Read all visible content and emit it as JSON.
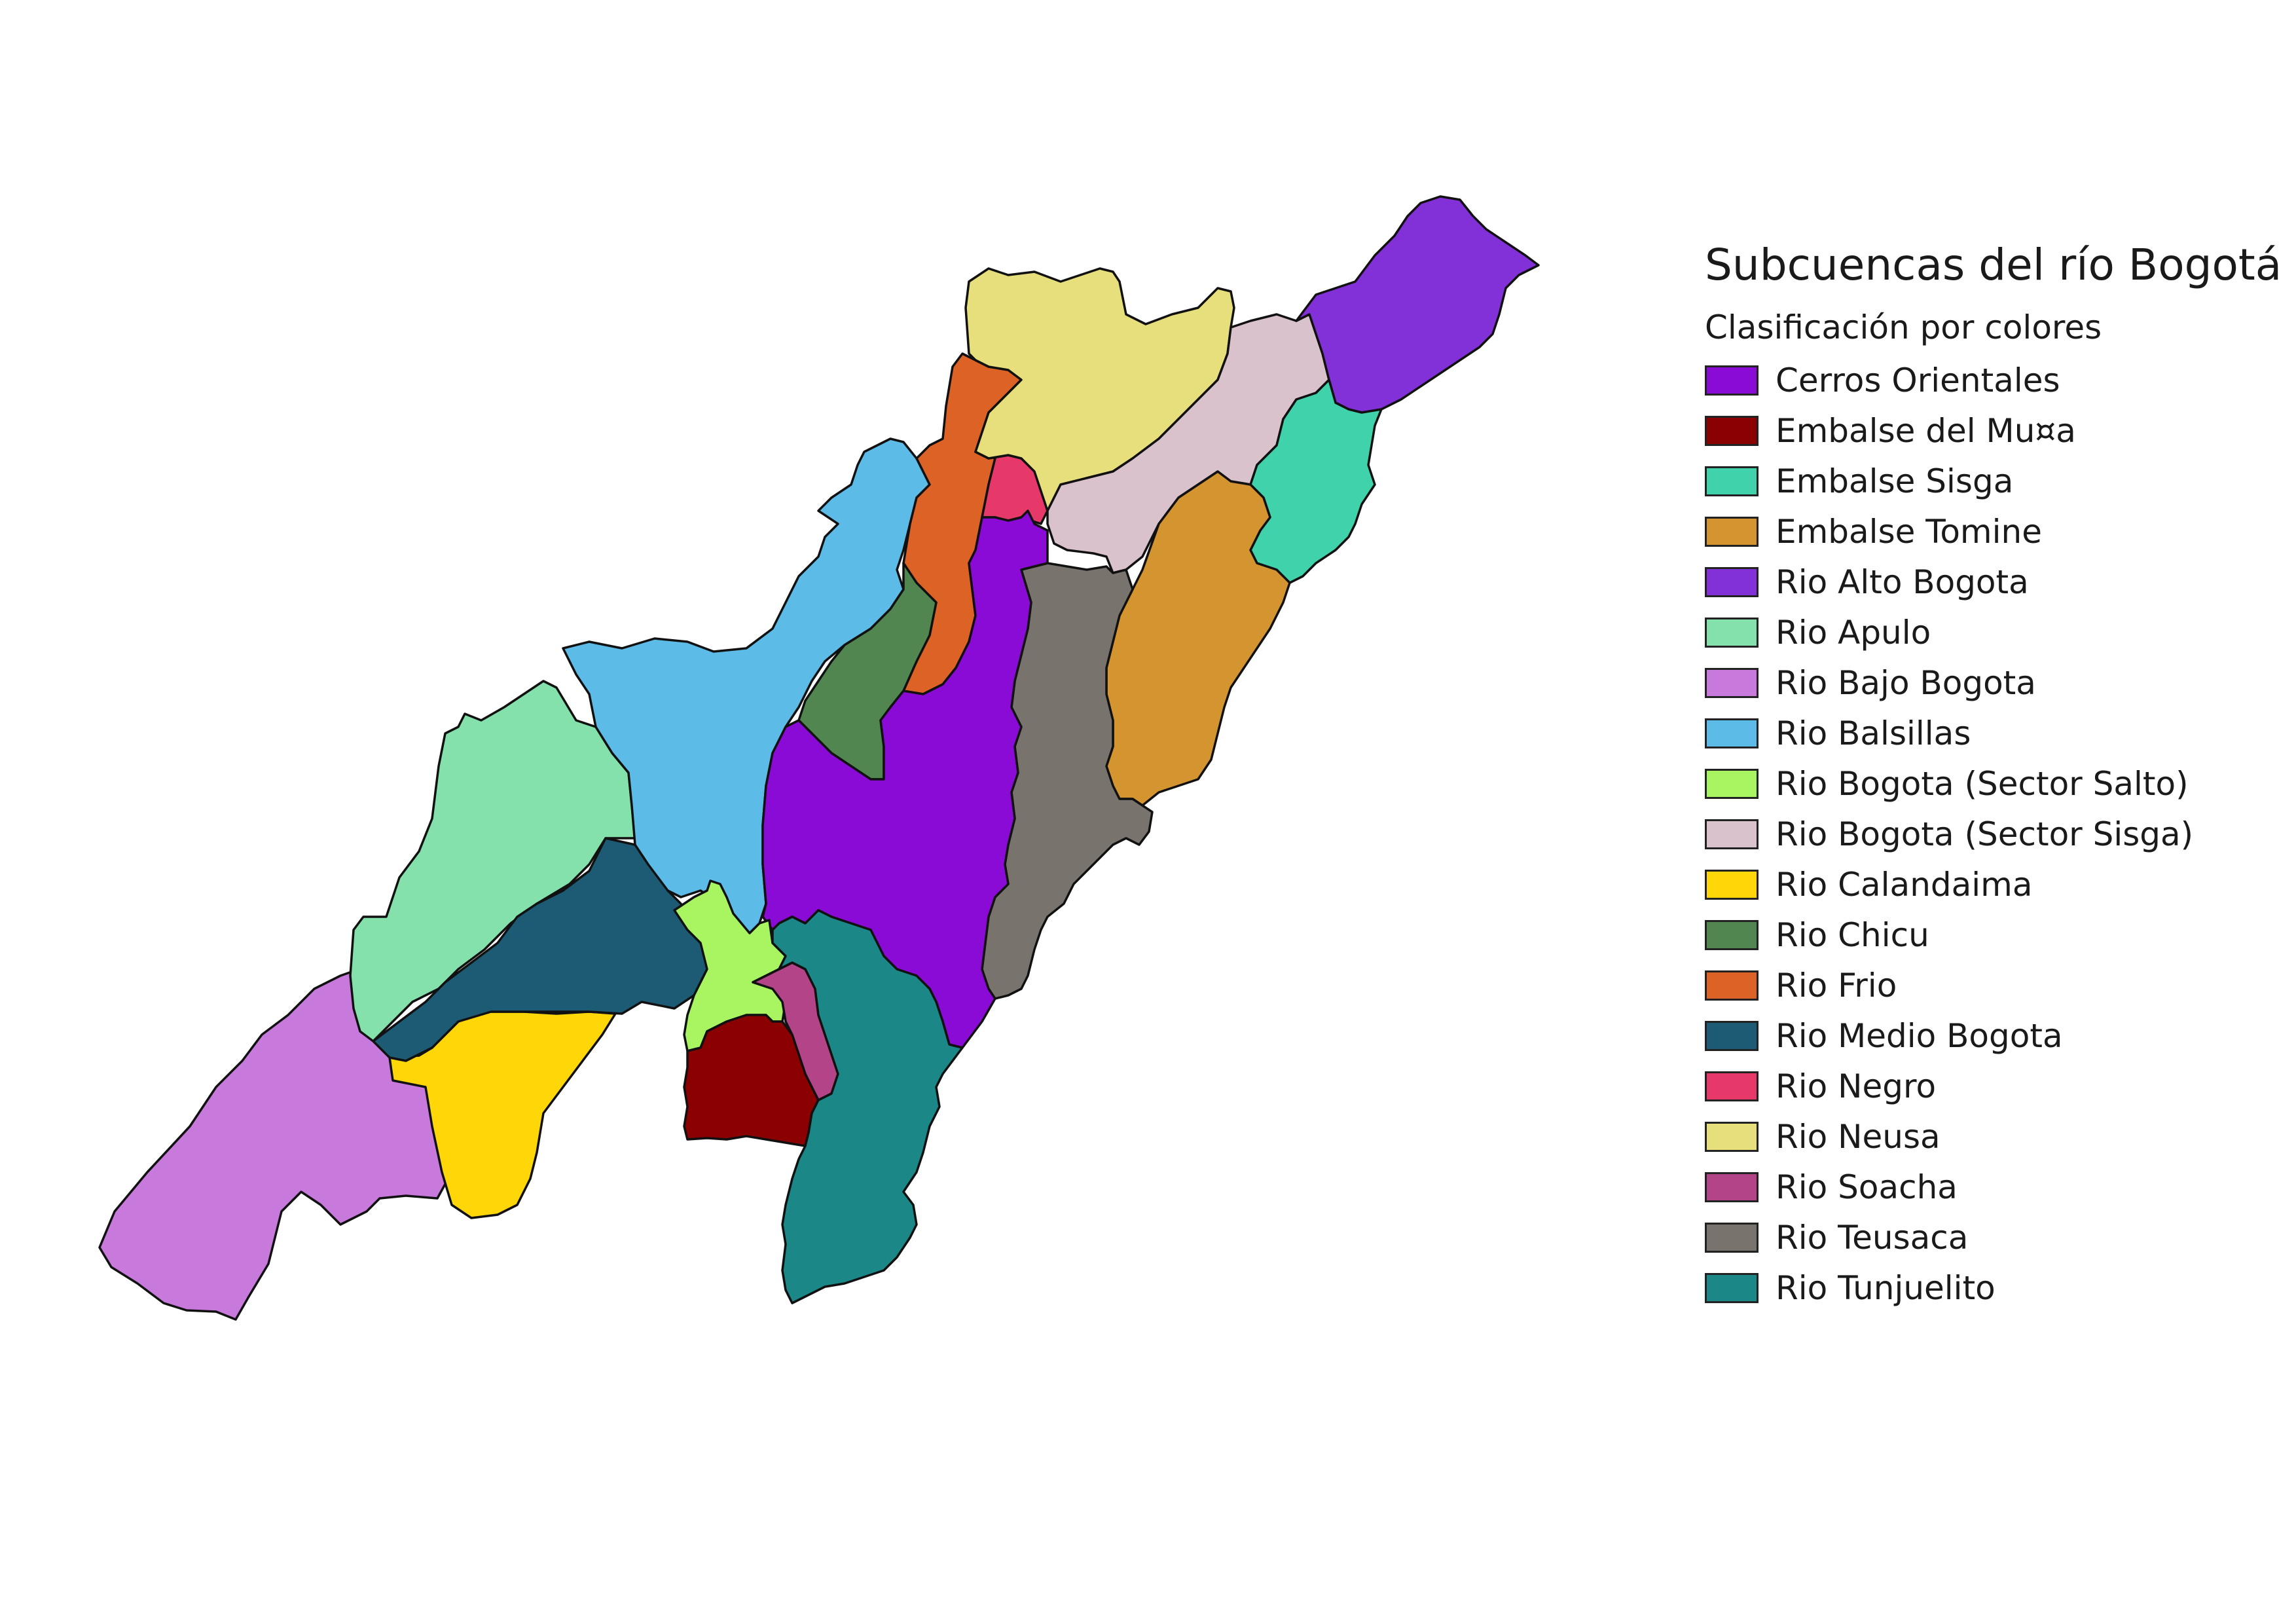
{
  "legend": {
    "title": "Subcuencas del río Bogotá",
    "subtitle": "Clasificación por colores",
    "items": [
      {
        "id": "cerros-orientales",
        "label": "Cerros Orientales",
        "color": "#8A0AD6"
      },
      {
        "id": "embalse-del-muna",
        "label": "Embalse del Mu¤a",
        "color": "#8B0000"
      },
      {
        "id": "embalse-sisga",
        "label": "Embalse Sisga",
        "color": "#40D2AA"
      },
      {
        "id": "embalse-tomine",
        "label": "Embalse Tomine",
        "color": "#D49531"
      },
      {
        "id": "rio-alto-bogota",
        "label": "Rio Alto Bogota",
        "color": "#8230D8"
      },
      {
        "id": "rio-apulo",
        "label": "Rio Apulo",
        "color": "#84E1AC"
      },
      {
        "id": "rio-bajo-bogota",
        "label": "Rio Bajo Bogota",
        "color": "#C77ADB"
      },
      {
        "id": "rio-balsillas",
        "label": "Rio Balsillas",
        "color": "#5DBBE7"
      },
      {
        "id": "rio-bogota-sector-salto",
        "label": "Rio Bogota (Sector Salto)",
        "color": "#A8F561"
      },
      {
        "id": "rio-bogota-sector-sisga",
        "label": "Rio Bogota (Sector Sisga)",
        "color": "#DAC2CD"
      },
      {
        "id": "rio-calandaima",
        "label": "Rio Calandaima",
        "color": "#FFD608"
      },
      {
        "id": "rio-chicu",
        "label": "Rio Chicu",
        "color": "#528651"
      },
      {
        "id": "rio-frio",
        "label": "Rio Frio",
        "color": "#DC6226"
      },
      {
        "id": "rio-medio-bogota",
        "label": "Rio Medio Bogota",
        "color": "#1D5B74"
      },
      {
        "id": "rio-negro",
        "label": "Rio Negro",
        "color": "#E6396A"
      },
      {
        "id": "rio-neusa",
        "label": "Rio Neusa",
        "color": "#E6DF7C"
      },
      {
        "id": "rio-soacha",
        "label": "Rio Soacha",
        "color": "#B34487"
      },
      {
        "id": "rio-teusaca",
        "label": "Rio Teusaca",
        "color": "#79736E"
      },
      {
        "id": "rio-tunjuelito",
        "label": "Rio Tunjuelito",
        "color": "#1B8787"
      }
    ]
  }
}
